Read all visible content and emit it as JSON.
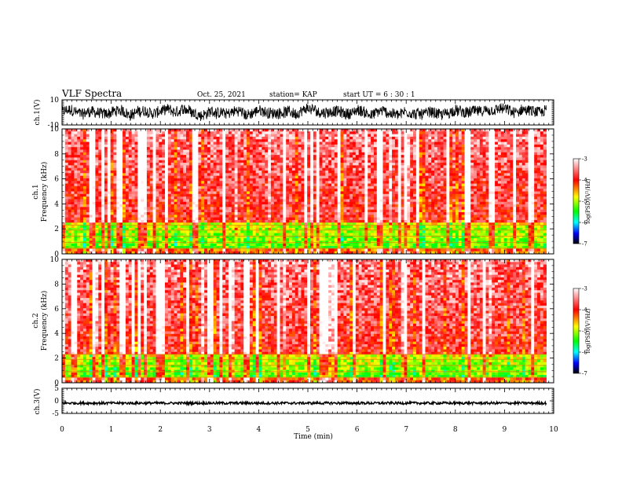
{
  "header": {
    "title": "VLF Spectra",
    "date": "Oct. 25, 2021",
    "station": "station= KAP",
    "start": "start  UT  =   6  : 30 : 1"
  },
  "chart_data": [
    {
      "type": "line",
      "panel": "ch1-waveform",
      "ylabel": "ch.1(V)",
      "ylim": [
        -10,
        10
      ],
      "yticks": [
        "10",
        "-10"
      ],
      "xlim": [
        0,
        10
      ],
      "x_end": 9.85,
      "color": "#000000",
      "description_values": {
        "mean": 0.2,
        "amplitude": 6
      }
    },
    {
      "type": "heatmap",
      "panel": "ch1-spectrogram",
      "ylabel_line1": "ch.1",
      "ylabel_line2": "Frequency  (kHz)",
      "ylim": [
        0,
        10
      ],
      "yticks": [
        "0",
        "2",
        "4",
        "6",
        "8",
        "10"
      ],
      "xlim": [
        0,
        10
      ],
      "x_end": 9.85,
      "colorbar": {
        "label": "log(PSD)(V²/Hz)",
        "ticks": [
          "-3",
          "-4",
          "-5",
          "-6",
          "-7"
        ],
        "range": [
          -7,
          -3
        ],
        "colors": [
          "#ffffff",
          "#ff0000",
          "#ffff00",
          "#00ff00",
          "#00ffff",
          "#0000ff",
          "#000000"
        ]
      }
    },
    {
      "type": "heatmap",
      "panel": "ch2-spectrogram",
      "ylabel_line1": "ch.2",
      "ylabel_line2": "Frequency  (kHz)",
      "ylim": [
        0,
        10
      ],
      "yticks": [
        "0",
        "2",
        "4",
        "6",
        "8",
        "10"
      ],
      "xlim": [
        0,
        10
      ],
      "x_end": 9.85,
      "colorbar": {
        "label": "log(PSD)(V²/Hz)",
        "ticks": [
          "-3",
          "-4",
          "-5",
          "-6",
          "-7"
        ],
        "range": [
          -7,
          -3
        ],
        "colors": [
          "#ffffff",
          "#ff0000",
          "#ffff00",
          "#00ff00",
          "#00ffff",
          "#0000ff",
          "#000000"
        ]
      }
    },
    {
      "type": "line",
      "panel": "ch3-waveform",
      "ylabel": "ch.3(V)",
      "ylim": [
        -5,
        5
      ],
      "yticks": [
        "5",
        "0",
        "-5"
      ],
      "xlim": [
        0,
        10
      ],
      "x_end": 9.85,
      "color": "#000000"
    }
  ],
  "xaxis": {
    "label": "Time  (min)",
    "ticks": [
      "0",
      "1",
      "2",
      "3",
      "4",
      "5",
      "6",
      "7",
      "8",
      "9",
      "10"
    ]
  }
}
